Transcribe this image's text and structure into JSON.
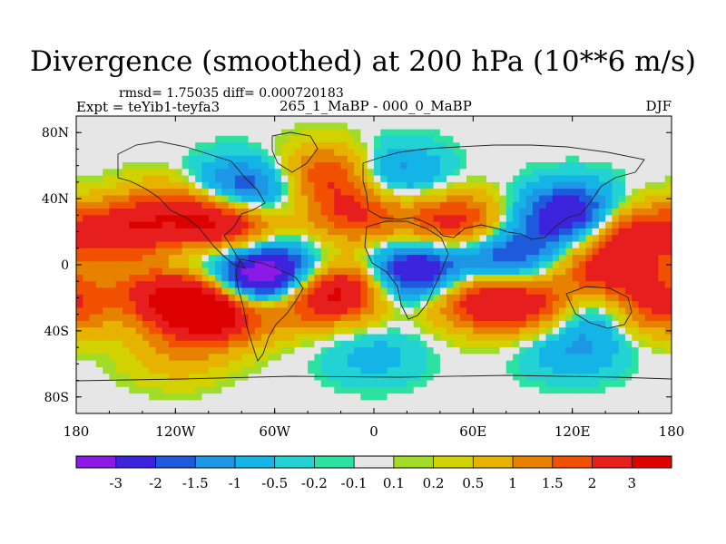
{
  "header": {
    "title": "Divergence (smoothed) at 200 hPa (10**6 m/s)",
    "rmsd_line": "rmsd= 1.75035 diff= 0.000720183",
    "expt_line": "Expt = teYib1-teyfa3",
    "subtitle": "265_1_MaBP - 000_0_MaBP",
    "season": "DJF"
  },
  "chart_data": {
    "type": "heatmap",
    "title": "Divergence (smoothed) at 200 hPa (10**6 m/s)",
    "xlabel": "",
    "ylabel": "",
    "xlim": [
      -180,
      180
    ],
    "ylim": [
      -90,
      90
    ],
    "x_ticks": [
      {
        "value": -180,
        "label": "180"
      },
      {
        "value": -120,
        "label": "120W"
      },
      {
        "value": -60,
        "label": "60W"
      },
      {
        "value": 0,
        "label": "0"
      },
      {
        "value": 60,
        "label": "60E"
      },
      {
        "value": 120,
        "label": "120E"
      },
      {
        "value": 180,
        "label": "180"
      }
    ],
    "y_ticks": [
      {
        "value": 80,
        "label": "80N"
      },
      {
        "value": 40,
        "label": "40N"
      },
      {
        "value": 0,
        "label": "0"
      },
      {
        "value": -40,
        "label": "40S"
      },
      {
        "value": -80,
        "label": "80S"
      }
    ],
    "colorbar": {
      "levels": [
        "-3",
        "-2",
        "-1.5",
        "-1",
        "-0.5",
        "-0.2",
        "-0.1",
        "0.1",
        "0.2",
        "0.5",
        "1",
        "1.5",
        "2",
        "3"
      ],
      "colors": [
        "#8c19e6",
        "#3c23dc",
        "#1e5adc",
        "#1e96e6",
        "#14b4e6",
        "#23d2d2",
        "#2de1a0",
        "#e6e6e6",
        "#a0dc28",
        "#d2d200",
        "#e6b400",
        "#e68200",
        "#f05000",
        "#e61e1e",
        "#dc0000"
      ]
    },
    "features": [
      {
        "lon": -150,
        "lat": 20,
        "value": 2.5
      },
      {
        "lon": -120,
        "lat": 35,
        "value": 1.5
      },
      {
        "lon": -110,
        "lat": 0,
        "value": -0.8
      },
      {
        "lon": -90,
        "lat": 25,
        "value": 3.2
      },
      {
        "lon": -80,
        "lat": 45,
        "value": -2.5
      },
      {
        "lon": -60,
        "lat": -5,
        "value": -3.4
      },
      {
        "lon": -75,
        "lat": -15,
        "value": -3.0
      },
      {
        "lon": -140,
        "lat": -15,
        "value": 0.9
      },
      {
        "lon": -110,
        "lat": -20,
        "value": 3.4
      },
      {
        "lon": -95,
        "lat": -30,
        "value": 3.0
      },
      {
        "lon": -55,
        "lat": -20,
        "value": 2.2
      },
      {
        "lon": -20,
        "lat": -15,
        "value": 3.3
      },
      {
        "lon": -10,
        "lat": 30,
        "value": 2.0
      },
      {
        "lon": -25,
        "lat": 55,
        "value": 2.2
      },
      {
        "lon": 10,
        "lat": 55,
        "value": -1.6
      },
      {
        "lon": 25,
        "lat": -5,
        "value": -3.4
      },
      {
        "lon": 50,
        "lat": 25,
        "value": 2.5
      },
      {
        "lon": 60,
        "lat": -20,
        "value": 2.6
      },
      {
        "lon": 80,
        "lat": 5,
        "value": -2.3
      },
      {
        "lon": 100,
        "lat": -25,
        "value": 2.5
      },
      {
        "lon": 120,
        "lat": 30,
        "value": -3.2
      },
      {
        "lon": 130,
        "lat": -25,
        "value": -1.8
      },
      {
        "lon": 140,
        "lat": -5,
        "value": 2.5
      },
      {
        "lon": 155,
        "lat": 20,
        "value": 2.7
      },
      {
        "lon": 170,
        "lat": -25,
        "value": 2.2
      },
      {
        "lon": -120,
        "lat": -55,
        "value": 0.8
      },
      {
        "lon": 0,
        "lat": -55,
        "value": -0.7
      },
      {
        "lon": 120,
        "lat": -50,
        "value": -1.1
      }
    ]
  }
}
